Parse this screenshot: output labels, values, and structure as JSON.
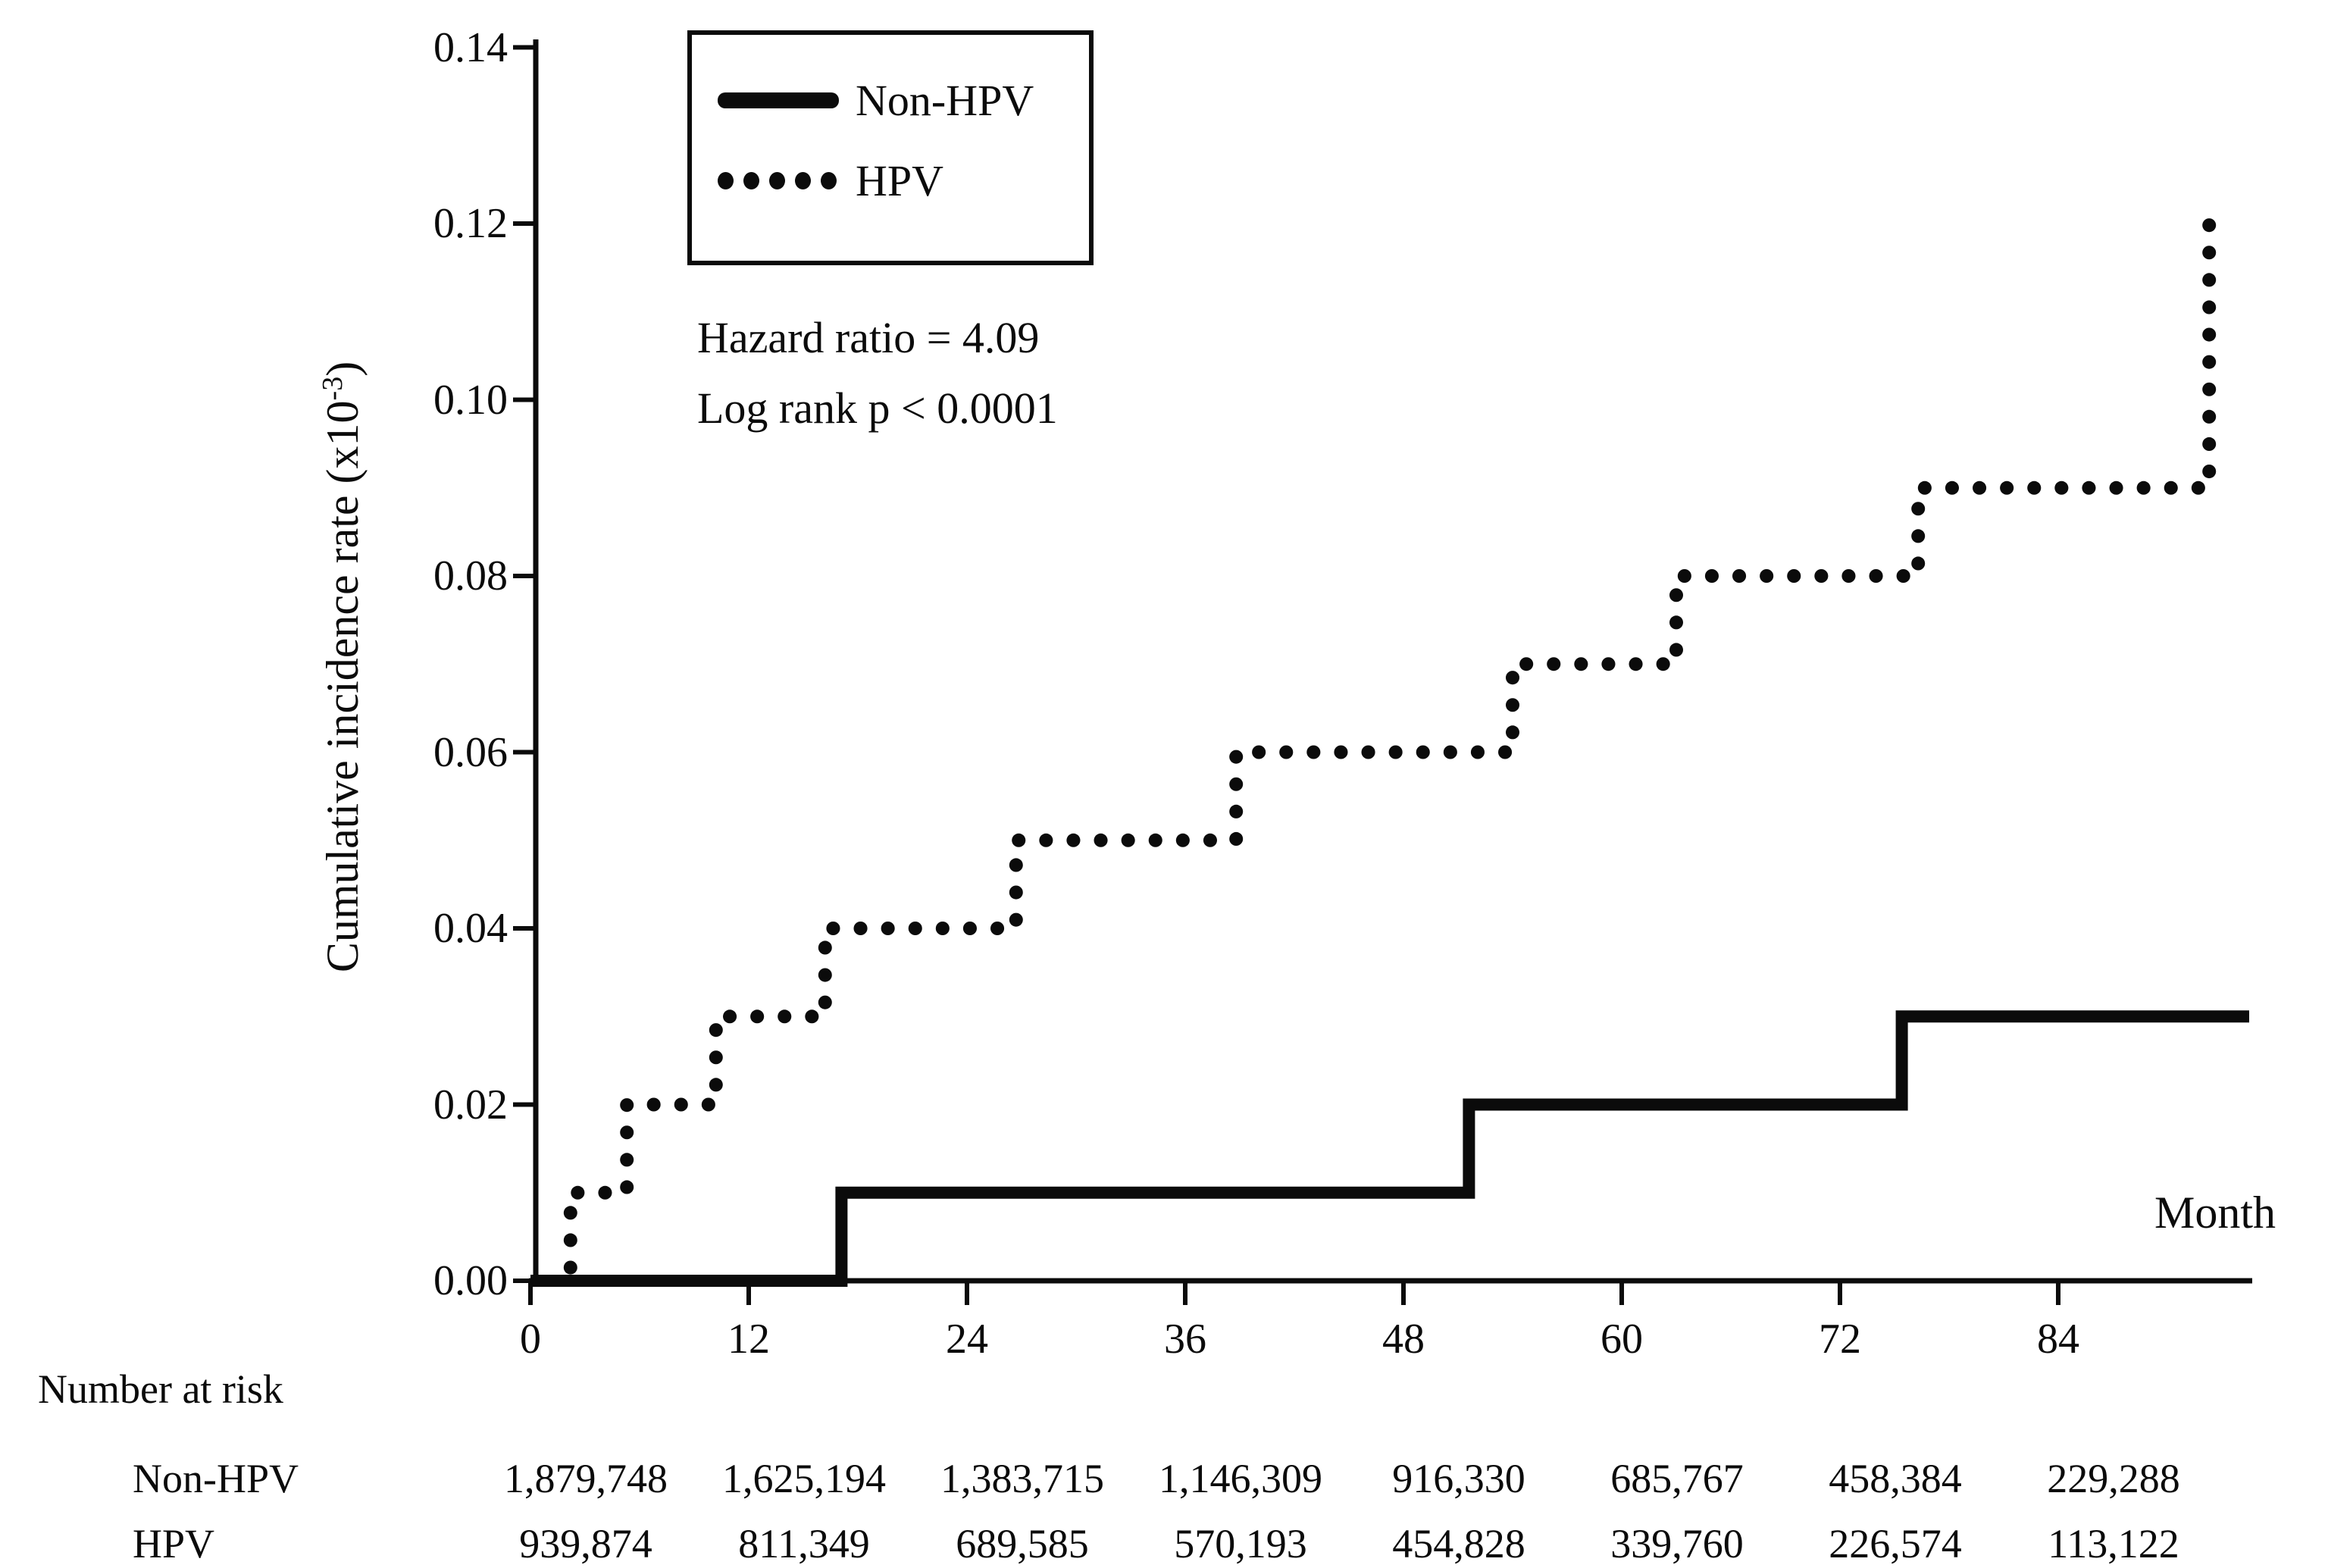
{
  "chart_data": {
    "type": "line",
    "subtype": "kaplan-meier-step",
    "title": "",
    "xlabel": "Month",
    "ylabel_prefix": "Cumulative incidence rate (x10",
    "ylabel_sup": "-3",
    "ylabel_suffix": ")",
    "xlim": [
      0,
      94.6
    ],
    "ylim": [
      0,
      0.14
    ],
    "grid": false,
    "x_ticks": [
      "0",
      "12",
      "24",
      "36",
      "48",
      "60",
      "72",
      "84"
    ],
    "y_ticks": [
      "0.00",
      "0.02",
      "0.04",
      "0.06",
      "0.08",
      "0.10",
      "0.12",
      "0.14"
    ],
    "legend_position": "top-left-inside",
    "legend": [
      {
        "label": "Non-HPV",
        "style": "solid"
      },
      {
        "label": "HPV",
        "style": "dotted"
      }
    ],
    "annotations": {
      "hazard_ratio": "Hazard ratio = 4.09",
      "log_rank": "Log rank p < 0.0001"
    },
    "series": [
      {
        "name": "Non-HPV",
        "style": "solid",
        "color": "#0b0b0b",
        "points": [
          [
            0,
            0.0
          ],
          [
            17.1,
            0.0
          ],
          [
            17.1,
            0.01
          ],
          [
            51.6,
            0.01
          ],
          [
            51.6,
            0.02
          ],
          [
            75.4,
            0.02
          ],
          [
            75.4,
            0.03
          ],
          [
            94.5,
            0.03
          ]
        ]
      },
      {
        "name": "HPV",
        "style": "dotted",
        "color": "#0b0b0b",
        "points": [
          [
            2.2,
            0.0015
          ],
          [
            2.2,
            0.01
          ],
          [
            5.3,
            0.01
          ],
          [
            5.3,
            0.02
          ],
          [
            10.2,
            0.02
          ],
          [
            10.2,
            0.03
          ],
          [
            16.2,
            0.03
          ],
          [
            16.2,
            0.04
          ],
          [
            26.7,
            0.04
          ],
          [
            26.7,
            0.05
          ],
          [
            38.8,
            0.05
          ],
          [
            38.8,
            0.06
          ],
          [
            54.0,
            0.06
          ],
          [
            54.0,
            0.07
          ],
          [
            63.0,
            0.07
          ],
          [
            63.0,
            0.08
          ],
          [
            76.3,
            0.08
          ],
          [
            76.3,
            0.09
          ],
          [
            92.3,
            0.09
          ],
          [
            92.3,
            0.12
          ],
          [
            93.6,
            0.12
          ]
        ]
      }
    ]
  },
  "risk_table": {
    "label": "Number at risk",
    "columns": [
      "0",
      "12",
      "24",
      "36",
      "48",
      "60",
      "72",
      "84"
    ],
    "rows": [
      {
        "name": "Non-HPV",
        "values": [
          "1,879,748",
          "1,625,194",
          "1,383,715",
          "1,146,309",
          "916,330",
          "685,767",
          "458,384",
          "229,288"
        ]
      },
      {
        "name": "HPV",
        "values": [
          "939,874",
          "811,349",
          "689,585",
          "570,193",
          "454,828",
          "339,760",
          "226,574",
          "113,122"
        ]
      }
    ]
  }
}
